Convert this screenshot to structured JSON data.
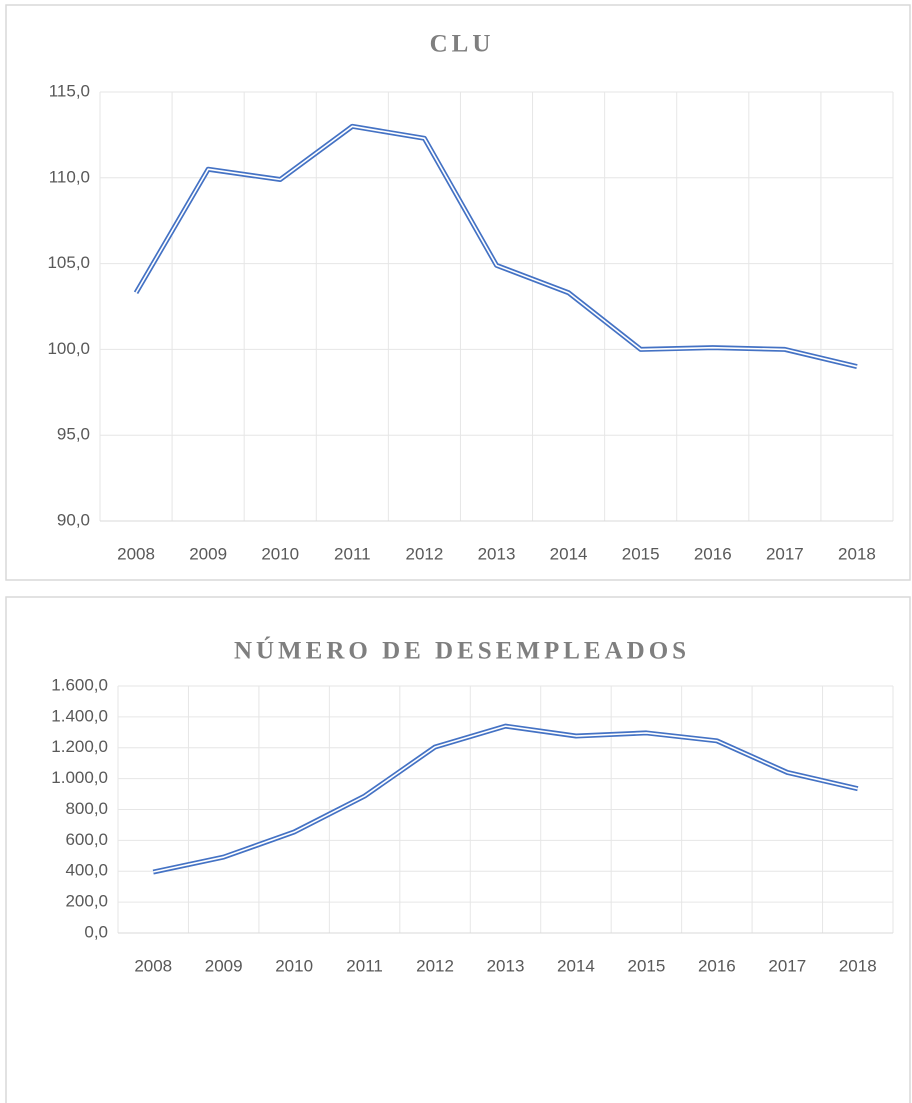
{
  "chart_data": [
    {
      "type": "line",
      "title": "CLU",
      "categories": [
        "2008",
        "2009",
        "2010",
        "2011",
        "2012",
        "2013",
        "2014",
        "2015",
        "2016",
        "2017",
        "2018"
      ],
      "series": [
        {
          "color": "#4472c4",
          "values": [
            103.3,
            110.5,
            109.9,
            113.0,
            112.3,
            104.9,
            103.3,
            100.0,
            100.1,
            100.0,
            99.0
          ]
        }
      ],
      "ylim": [
        90,
        115
      ],
      "yticks": [
        {
          "value": 90,
          "label": "90,0"
        },
        {
          "value": 95,
          "label": "95,0"
        },
        {
          "value": 100,
          "label": "100,0"
        },
        {
          "value": 105,
          "label": "105,0"
        },
        {
          "value": 110,
          "label": "110,0"
        },
        {
          "value": 115,
          "label": "115,0"
        }
      ],
      "grid": true
    },
    {
      "type": "line",
      "title": "NÚMERO DE DESEMPLEADOS",
      "categories": [
        "2008",
        "2009",
        "2010",
        "2011",
        "2012",
        "2013",
        "2014",
        "2015",
        "2016",
        "2017",
        "2018"
      ],
      "series": [
        {
          "color": "#4472c4",
          "values": [
            395,
            492,
            654,
            887,
            1205,
            1340,
            1276,
            1296,
            1245,
            1040,
            935
          ]
        }
      ],
      "ylim": [
        0,
        1600
      ],
      "yticks": [
        {
          "value": 0,
          "label": "0,0"
        },
        {
          "value": 200,
          "label": "200,0"
        },
        {
          "value": 400,
          "label": "400,0"
        },
        {
          "value": 600,
          "label": "600,0"
        },
        {
          "value": 800,
          "label": "800,0"
        },
        {
          "value": 1000,
          "label": "1.000,0"
        },
        {
          "value": 1200,
          "label": "1.200,0"
        },
        {
          "value": 1400,
          "label": "1.400,0"
        },
        {
          "value": 1600,
          "label": "1.600,0"
        }
      ],
      "grid": true
    }
  ]
}
